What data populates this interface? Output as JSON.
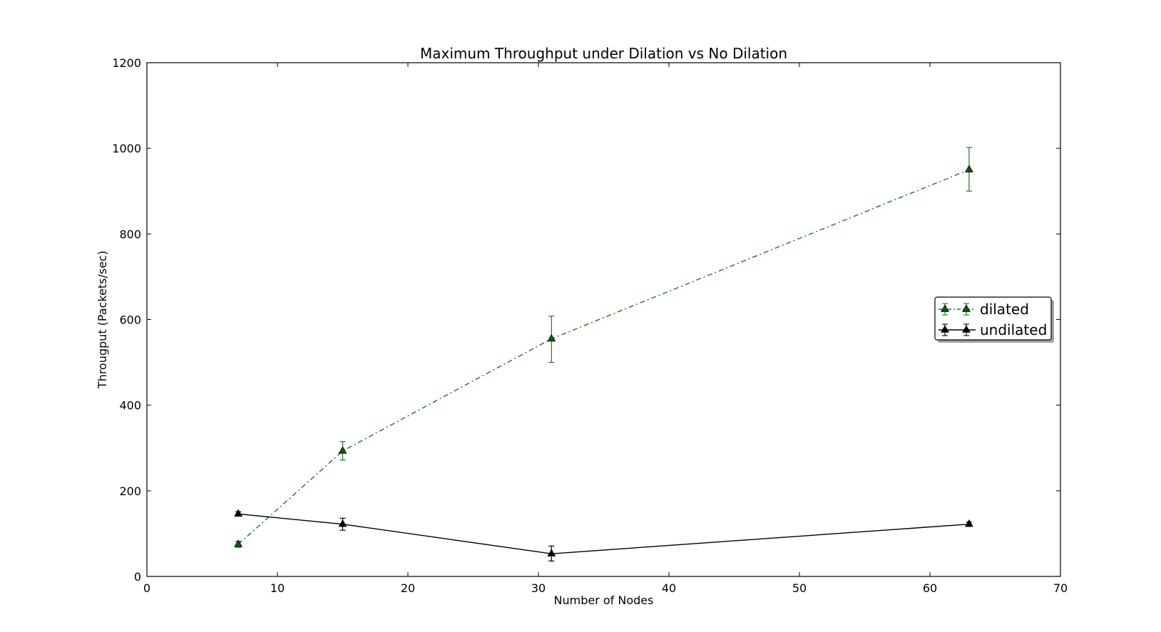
{
  "chart_data": {
    "type": "line",
    "title": "Maximum Throughput under Dilation vs No Dilation",
    "xlabel": "Number of Nodes",
    "ylabel": "Througput (Packets/sec)",
    "xlim": [
      0,
      70
    ],
    "ylim": [
      0,
      1200
    ],
    "xticks": [
      0,
      10,
      20,
      30,
      40,
      50,
      60,
      70
    ],
    "yticks": [
      0,
      200,
      400,
      600,
      800,
      1000,
      1200
    ],
    "grid": false,
    "legend_position": "center-right",
    "series": [
      {
        "name": "dilated",
        "color": "#1a7a1a",
        "marker_color": "#0b5e0b",
        "line_style": "dash-dot",
        "marker": "triangle",
        "x": [
          7,
          15,
          31,
          63
        ],
        "y": [
          75,
          293,
          555,
          950
        ],
        "yerr_low": [
          68,
          272,
          500,
          900
        ],
        "yerr_high": [
          82,
          315,
          608,
          1002
        ]
      },
      {
        "name": "undilated",
        "color": "#000000",
        "marker_color": "#000000",
        "line_style": "solid",
        "marker": "triangle",
        "x": [
          7,
          15,
          31,
          63
        ],
        "y": [
          146,
          122,
          53,
          122
        ],
        "yerr_low": [
          141,
          108,
          36,
          117
        ],
        "yerr_high": [
          151,
          136,
          71,
          127
        ]
      }
    ]
  }
}
